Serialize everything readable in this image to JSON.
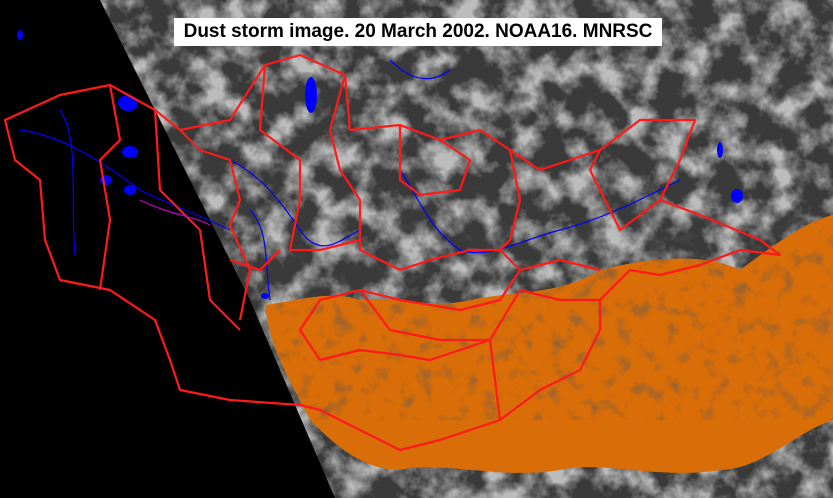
{
  "title": "Dust storm image. 20 March 2002. NOAA16. MNRSC",
  "colors": {
    "no_data": "#000000",
    "cloud": "#9a9a9a",
    "dust": "#d96d08",
    "borders": "#ff1a1a",
    "water": "#0000ff"
  }
}
